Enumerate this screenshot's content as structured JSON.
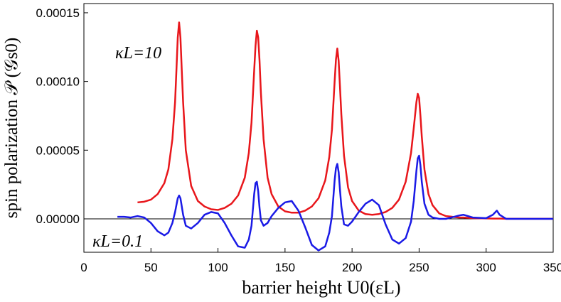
{
  "chart_data": {
    "type": "line",
    "xlabel": "barrier height U0(εL)",
    "ylabel": "spin polarization 𝒫 (𝒢s0)",
    "annotations": [
      "κL=10",
      "κL=0.1"
    ],
    "x": [
      25,
      30,
      35,
      40,
      45,
      50,
      55,
      60,
      63,
      66,
      68,
      69,
      70,
      71,
      72,
      73,
      74,
      76,
      80,
      85,
      90,
      95,
      100,
      105,
      110,
      115,
      120,
      123,
      125,
      127,
      128,
      129,
      130,
      131,
      132,
      134,
      137,
      140,
      145,
      150,
      155,
      160,
      165,
      170,
      175,
      180,
      183,
      185,
      187,
      188,
      189,
      190,
      191,
      192,
      194,
      197,
      200,
      205,
      210,
      215,
      220,
      225,
      230,
      235,
      240,
      244,
      246,
      248,
      249,
      250,
      251,
      252,
      254,
      257,
      260,
      265,
      270,
      280,
      283,
      290,
      300,
      305,
      308,
      310,
      315,
      320,
      330,
      340,
      350
    ],
    "series": [
      {
        "name": "κL=10",
        "color": "#e8161b",
        "values": [
          null,
          null,
          null,
          1.2e-05,
          1.25e-05,
          1.4e-05,
          1.8e-05,
          2.6e-05,
          3.6e-05,
          5.8e-05,
          8.5e-05,
          0.000108,
          0.000132,
          0.000143,
          0.000132,
          0.000108,
          8.5e-05,
          5e-05,
          2.4e-05,
          1.3e-05,
          9e-06,
          7e-06,
          6.5e-06,
          8e-06,
          1.1e-05,
          1.7e-05,
          3e-05,
          4.8e-05,
          7e-05,
          0.000108,
          0.000126,
          0.000137,
          0.000132,
          0.000115,
          9.2e-05,
          5.8e-05,
          3e-05,
          1.8e-05,
          9e-06,
          5.5e-06,
          4.5e-06,
          4.5e-06,
          6e-06,
          9e-06,
          1.5e-05,
          2.8e-05,
          4.5e-05,
          6.5e-05,
          0.0001,
          0.000116,
          0.000124,
          0.000115,
          9.6e-05,
          7.6e-05,
          4.6e-05,
          2.3e-05,
          1.3e-05,
          6e-06,
          3.5e-06,
          3e-06,
          3.5e-06,
          5e-06,
          8e-06,
          1.4e-05,
          2.7e-05,
          4.8e-05,
          6.6e-05,
          8.5e-05,
          9.1e-05,
          8.8e-05,
          7.5e-05,
          6e-05,
          3.6e-05,
          1.8e-05,
          1e-05,
          4e-06,
          2e-06,
          1e-06,
          1e-06,
          5e-07,
          3e-07,
          2e-07,
          2e-07,
          2e-07,
          1e-07,
          1e-07,
          1e-07,
          1e-07,
          1e-07
        ]
      },
      {
        "name": "κL=0.1",
        "color": "#1a1ae6",
        "values": [
          1.5e-06,
          1.5e-06,
          1e-06,
          2e-06,
          1e-06,
          -3e-06,
          -9e-06,
          -1.2e-05,
          -1e-05,
          -3e-06,
          5e-06,
          1e-05,
          1.5e-05,
          1.7e-05,
          1.5e-05,
          9e-06,
          3e-06,
          -5e-06,
          -7e-06,
          -3e-06,
          3e-06,
          5e-06,
          4e-06,
          -3e-06,
          -1.2e-05,
          -2e-05,
          -2.1e-05,
          -1.5e-05,
          -5e-06,
          1.8e-05,
          2.6e-05,
          2.7e-05,
          2e-05,
          8e-06,
          -1e-06,
          -5e-06,
          -3e-06,
          2e-06,
          8e-06,
          1.2e-05,
          1.3e-05,
          6e-06,
          -6e-06,
          -1.9e-05,
          -2.3e-05,
          -2e-05,
          -1e-05,
          2e-06,
          2.8e-05,
          3.7e-05,
          4e-05,
          3.4e-05,
          2.1e-05,
          9e-06,
          -4e-06,
          -5e-06,
          -2e-06,
          5e-06,
          1.1e-05,
          1.4e-05,
          1e-05,
          -4e-06,
          -1.5e-05,
          -1.8e-05,
          -1.4e-05,
          -2e-06,
          1.3e-05,
          3.5e-05,
          4.4e-05,
          4.6e-05,
          3.9e-05,
          2.7e-05,
          1.1e-05,
          3e-06,
          1e-06,
          0,
          0,
          2.5e-06,
          3e-06,
          1e-06,
          5e-07,
          3e-06,
          6e-06,
          3e-06,
          0,
          0,
          0,
          0,
          0
        ]
      }
    ],
    "xlim": [
      0,
      350
    ],
    "xticks": [
      0,
      50,
      100,
      150,
      200,
      250,
      300,
      350
    ],
    "ylim": [
      -2.43e-05,
      0.0001567
    ],
    "yticks": [
      {
        "value": 0,
        "label": "0.00000"
      },
      5e-05,
      {
        "value": 0.0001,
        "label": "0.00010"
      },
      0.00015
    ]
  }
}
